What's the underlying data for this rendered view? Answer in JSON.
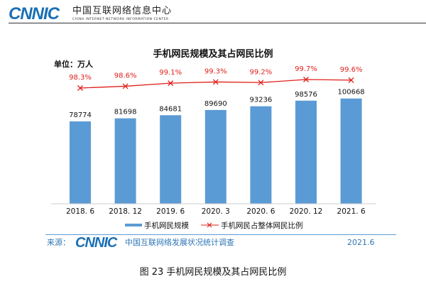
{
  "header": {
    "logo_text": "CNNIC",
    "org_name_cn": "中国互联网络信息中心",
    "org_name_en": "CHINA INTERNET NETWORK INFORMATION CENTER"
  },
  "chart_data": {
    "type": "bar+line",
    "title": "手机网民规模及其占网民比例",
    "unit_label": "单位：万人",
    "categories": [
      "2018. 6",
      "2018. 12",
      "2019. 6",
      "2020. 3",
      "2020. 6",
      "2020. 12",
      "2021. 6"
    ],
    "series": [
      {
        "name": "手机网民规模",
        "type": "bar",
        "values": [
          78774,
          81698,
          84681,
          89690,
          93236,
          98576,
          100668
        ],
        "labels": [
          "78774",
          "81698",
          "84681",
          "89690",
          "93236",
          "98576",
          "100668"
        ],
        "color": "#5b9bd5"
      },
      {
        "name": "手机网民占整体网民比例",
        "type": "line",
        "values": [
          98.3,
          98.6,
          99.1,
          99.3,
          99.2,
          99.7,
          99.6
        ],
        "labels": [
          "98.3%",
          "98.6%",
          "99.1%",
          "99.3%",
          "99.2%",
          "99.7%",
          "99.6%"
        ],
        "color": "#e0201b",
        "marker": "x"
      }
    ],
    "legend_position": "bottom",
    "grid": false
  },
  "footer": {
    "source_label": "来源：",
    "source_logo": "CNNIC",
    "source_text": "中国互联网络发展状况统计调查",
    "date": "2021.6"
  },
  "caption": "图  23    手机网民规模及其占网民比例"
}
